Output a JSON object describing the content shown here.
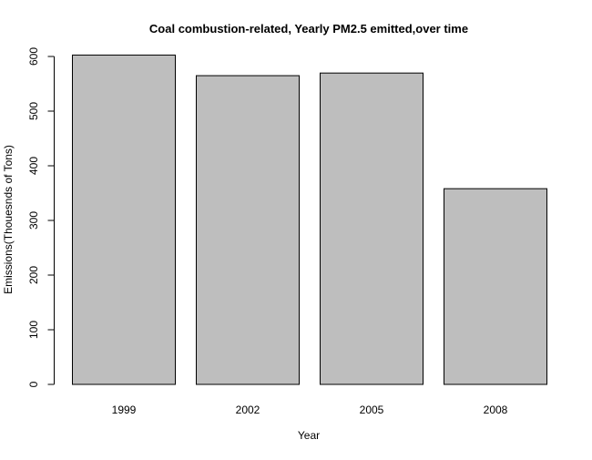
{
  "chart_data": {
    "type": "bar",
    "title": "Coal combustion-related, Yearly PM2.5 emitted,over time",
    "xlabel": "Year",
    "ylabel": "Emissions(Thouesnds of Tons)",
    "categories": [
      "1999",
      "2002",
      "2005",
      "2008"
    ],
    "values": [
      602.6,
      564.9,
      569.7,
      358.1
    ],
    "ylim": [
      0,
      600
    ],
    "yticks": [
      0,
      100,
      200,
      300,
      400,
      500,
      600
    ],
    "bar_color": "#bebebe",
    "grid": false,
    "legend": "none"
  }
}
